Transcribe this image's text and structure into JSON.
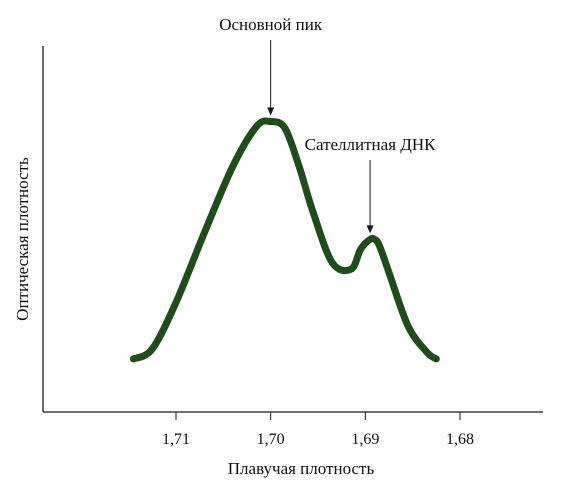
{
  "chart_data": {
    "type": "line",
    "xlabel": "Плавучая плотность",
    "ylabel": "Оптическая плотность",
    "x_reversed": true,
    "xlim": [
      1.72,
      1.675
    ],
    "ylim": [
      0,
      1
    ],
    "x_ticks": [
      {
        "value": 1.71,
        "label": "1,71"
      },
      {
        "value": 1.7,
        "label": "1,70"
      },
      {
        "value": 1.69,
        "label": "1,69"
      },
      {
        "value": 1.68,
        "label": "1,68"
      }
    ],
    "y_ticks": [],
    "grid": false,
    "series": [
      {
        "color": "#1f4d1a",
        "x": [
          1.7145,
          1.7125,
          1.71,
          1.707,
          1.704,
          1.7015,
          1.7,
          1.6985,
          1.697,
          1.6955,
          1.6935,
          1.6915,
          1.6905,
          1.6895,
          1.689,
          1.6885,
          1.6875,
          1.6855,
          1.6835,
          1.6825
        ],
        "y": [
          0.16,
          0.19,
          0.33,
          0.54,
          0.74,
          0.86,
          0.875,
          0.855,
          0.74,
          0.6,
          0.45,
          0.43,
          0.49,
          0.52,
          0.52,
          0.5,
          0.42,
          0.26,
          0.18,
          0.16
        ]
      }
    ],
    "annotations": [
      {
        "text": "Основной пик",
        "x": 1.7,
        "y": 0.875
      },
      {
        "text": "Сателлитная ДНК",
        "x": 1.6895,
        "y": 0.52
      }
    ]
  }
}
